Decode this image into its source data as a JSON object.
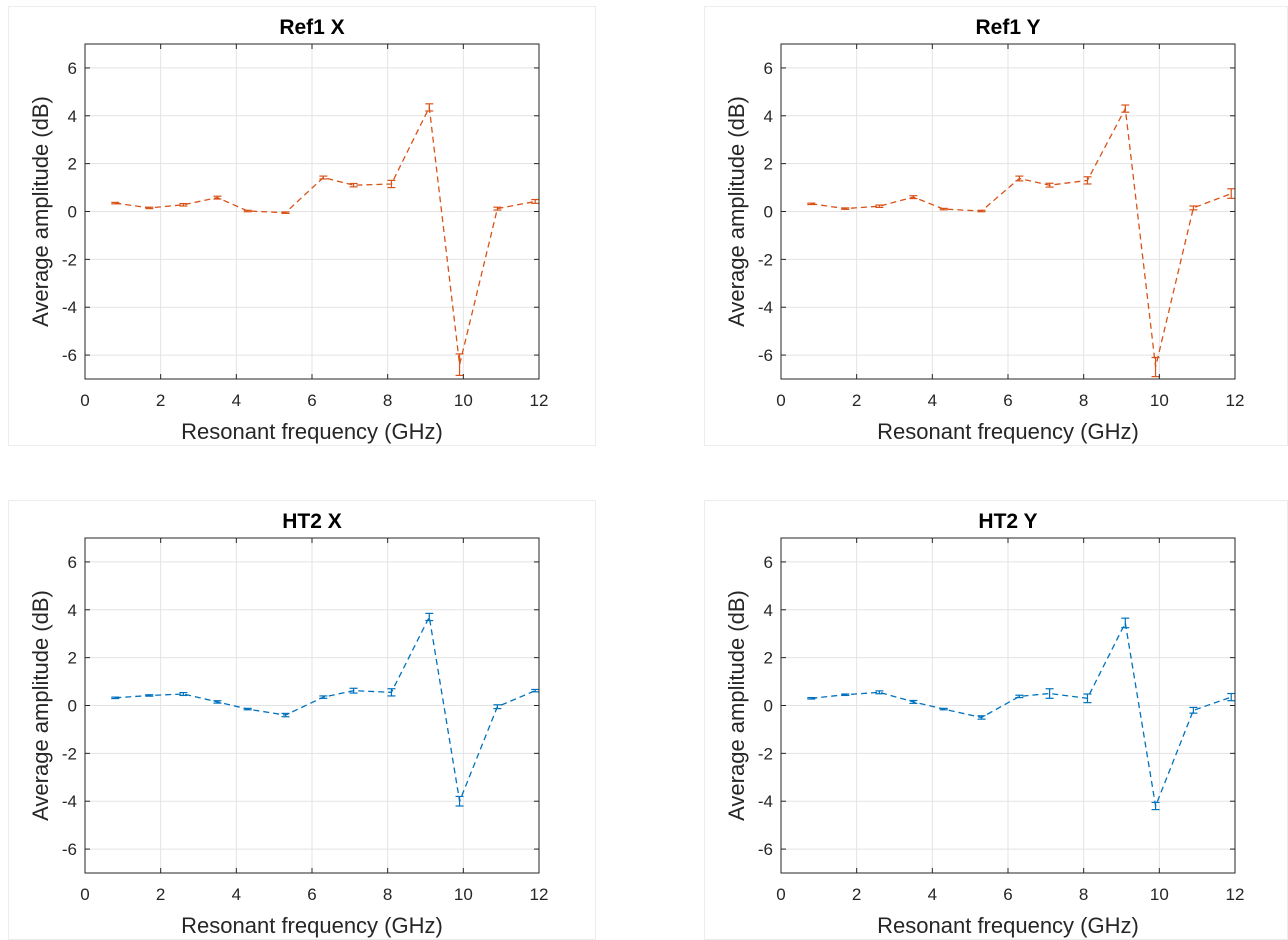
{
  "chart_data": [
    {
      "type": "line",
      "title": "Ref1 X",
      "xlabel": "Resonant frequency (GHz)",
      "ylabel": "Average amplitude (dB)",
      "xlim": [
        0,
        12
      ],
      "ylim": [
        -7,
        7
      ],
      "xticks": [
        "0",
        "2",
        "4",
        "6",
        "8",
        "10",
        "12"
      ],
      "yticks": [
        "-6",
        "-4",
        "-2",
        "0",
        "2",
        "4",
        "6"
      ],
      "grid": true,
      "color": "#d95319",
      "series": [
        {
          "x": [
            0.8,
            1.7,
            2.6,
            3.5,
            4.3,
            5.3,
            6.3,
            7.1,
            8.1,
            9.1,
            9.9,
            10.9,
            11.9
          ],
          "y": [
            0.35,
            0.15,
            0.28,
            0.58,
            0.02,
            -0.05,
            1.42,
            1.1,
            1.15,
            4.35,
            -6.4,
            0.12,
            0.42
          ],
          "err": [
            0.03,
            0.03,
            0.05,
            0.06,
            0.03,
            0.03,
            0.06,
            0.07,
            0.15,
            0.15,
            0.45,
            0.06,
            0.08
          ]
        }
      ]
    },
    {
      "type": "line",
      "title": "Ref1 Y",
      "xlabel": "Resonant frequency (GHz)",
      "ylabel": "Average amplitude (dB)",
      "xlim": [
        0,
        12
      ],
      "ylim": [
        -7,
        7
      ],
      "xticks": [
        "0",
        "2",
        "4",
        "6",
        "8",
        "10",
        "12"
      ],
      "yticks": [
        "-6",
        "-4",
        "-2",
        "0",
        "2",
        "4",
        "6"
      ],
      "grid": true,
      "color": "#d95319",
      "series": [
        {
          "x": [
            0.8,
            1.7,
            2.6,
            3.5,
            4.3,
            5.3,
            6.3,
            7.1,
            8.1,
            9.1,
            9.9,
            10.9,
            11.9
          ],
          "y": [
            0.32,
            0.12,
            0.22,
            0.6,
            0.1,
            0.02,
            1.38,
            1.1,
            1.3,
            4.3,
            -6.5,
            0.15,
            0.75
          ],
          "err": [
            0.03,
            0.03,
            0.05,
            0.06,
            0.03,
            0.03,
            0.1,
            0.08,
            0.15,
            0.15,
            0.4,
            0.08,
            0.2
          ]
        }
      ]
    },
    {
      "type": "line",
      "title": "HT2 X",
      "xlabel": "Resonant frequency (GHz)",
      "ylabel": "Average amplitude (dB)",
      "xlim": [
        0,
        12
      ],
      "ylim": [
        -7,
        7
      ],
      "xticks": [
        "0",
        "2",
        "4",
        "6",
        "8",
        "10",
        "12"
      ],
      "yticks": [
        "-6",
        "-4",
        "-2",
        "0",
        "2",
        "4",
        "6"
      ],
      "grid": true,
      "color": "#0072bd",
      "series": [
        {
          "x": [
            0.8,
            1.7,
            2.6,
            3.5,
            4.3,
            5.3,
            6.3,
            7.1,
            8.1,
            9.1,
            9.9,
            10.9,
            11.9
          ],
          "y": [
            0.32,
            0.42,
            0.48,
            0.15,
            -0.15,
            -0.4,
            0.35,
            0.62,
            0.55,
            3.7,
            -4.0,
            -0.05,
            0.62
          ],
          "err": [
            0.03,
            0.03,
            0.06,
            0.05,
            0.03,
            0.07,
            0.05,
            0.1,
            0.15,
            0.15,
            0.2,
            0.08,
            0.05
          ]
        }
      ]
    },
    {
      "type": "line",
      "title": "HT2 Y",
      "xlabel": "Resonant frequency (GHz)",
      "ylabel": "Average amplitude (dB)",
      "xlim": [
        0,
        12
      ],
      "ylim": [
        -7,
        7
      ],
      "xticks": [
        "0",
        "2",
        "4",
        "6",
        "8",
        "10",
        "12"
      ],
      "yticks": [
        "-6",
        "-4",
        "-2",
        "0",
        "2",
        "4",
        "6"
      ],
      "grid": true,
      "color": "#0072bd",
      "series": [
        {
          "x": [
            0.8,
            1.7,
            2.6,
            3.5,
            4.3,
            5.3,
            6.3,
            7.1,
            8.1,
            9.1,
            9.9,
            10.9,
            11.9
          ],
          "y": [
            0.3,
            0.45,
            0.55,
            0.15,
            -0.15,
            -0.5,
            0.38,
            0.5,
            0.3,
            3.45,
            -4.2,
            -0.2,
            0.35
          ],
          "err": [
            0.03,
            0.03,
            0.06,
            0.06,
            0.03,
            0.07,
            0.05,
            0.2,
            0.18,
            0.2,
            0.15,
            0.12,
            0.15
          ]
        }
      ]
    }
  ]
}
